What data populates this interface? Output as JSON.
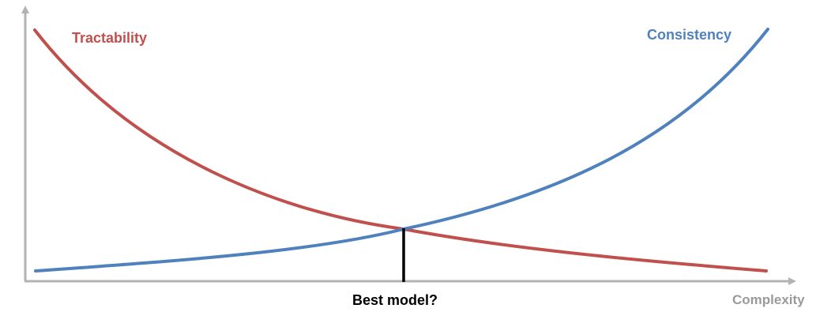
{
  "labels": {
    "tractability": "Tractability",
    "consistency": "Consistency",
    "best_model": "Best model?",
    "x_axis": "Complexity"
  },
  "colors": {
    "tractability": "#c0504d",
    "consistency": "#4f81bd",
    "axis": "#b3b3b3",
    "marker": "#000000",
    "x_axis_label": "#9a9a9a"
  }
}
